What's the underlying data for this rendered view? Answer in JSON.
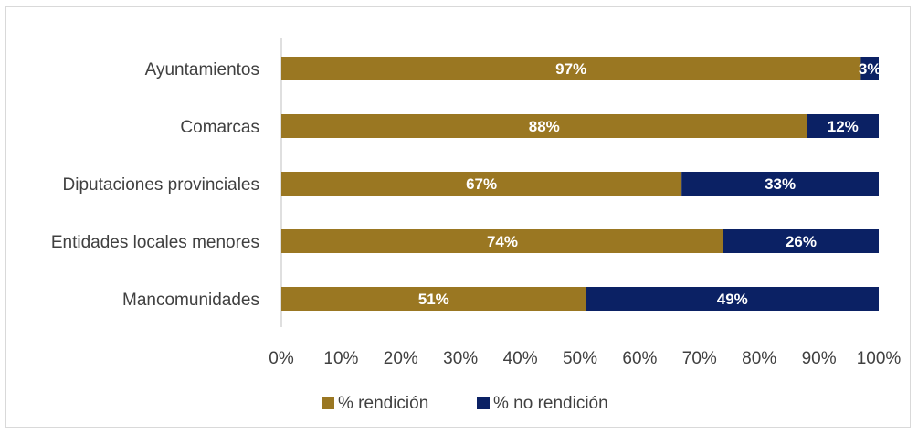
{
  "chart_data": {
    "type": "bar",
    "orientation": "horizontal",
    "stacked": true,
    "categories": [
      "Ayuntamientos",
      "Comarcas",
      "Diputaciones provinciales",
      "Entidades locales menores",
      "Mancomunidades"
    ],
    "series": [
      {
        "name": "% rendición",
        "values": [
          97,
          88,
          67,
          74,
          51
        ],
        "labels": [
          "97%",
          "88%",
          "67%",
          "74%",
          "51%"
        ],
        "color": "#9a7722"
      },
      {
        "name": "% no rendición",
        "values": [
          3,
          12,
          33,
          26,
          49
        ],
        "labels": [
          "3%",
          "12%",
          "33%",
          "26%",
          "49%"
        ],
        "color": "#0b2164"
      }
    ],
    "xlim": [
      0,
      100
    ],
    "xticks": [
      "0%",
      "10%",
      "20%",
      "30%",
      "40%",
      "50%",
      "60%",
      "70%",
      "80%",
      "90%",
      "100%"
    ],
    "grid": false,
    "legend_position": "bottom"
  }
}
